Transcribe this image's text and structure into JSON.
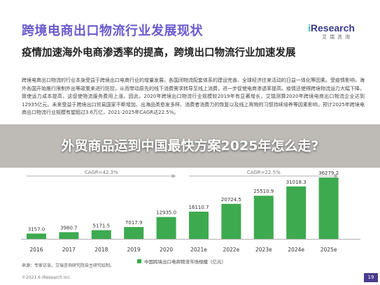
{
  "slide": {
    "title": "跨境电商出口物流行业发展现状",
    "subtitle": "疫情加速海外电商渗透率的提高，跨境出口物流行业加速发展",
    "body": "跨境电商出口物流的行业本身受益于跨境出口电商行业的增量发展，各国闭物流配套体系的建设完善、全球经济往来活动的日益一体化等因素。受疫情影响，海外各国开始推行限制外出等政策来进行防控，从而带动原先的线下消费需求转导至线上消费，进一步促使电商渗透率提高。疫情还使得跨境物流运力大幅下降，致使运力成本提高，这促使物流服务费用上涨。因此，2020年跨境出口物流行业规模较2019年有显著增长，艾瑞测算2020年跨境电商出口物流企业达到12935亿元。未来受益于跨境出口贸易国家不断增加、出海品类愈发多样、消费者消费力的恢复以及线上购物的习惯持续培养等因素影响，预计2025年跨境电商出口物流行业规模有望超过3.6万亿，2021-2025年CAGR达22.5%。",
    "overlay_title": "外贸商品运到中国最快方案2025年怎么走?",
    "source_note": "来源：专家访谈，艾瑞咨询研究院自主研究绘制。",
    "copyright": "©2021.6 iResearch Inc.",
    "page_number": "19",
    "logo": {
      "brand_i": "i",
      "brand_rest": "Research",
      "cn": "艾瑞咨询"
    }
  },
  "colors": {
    "bar": "#3daa4f",
    "title": "#6a5acd",
    "cagr_line": "#b0b0b0"
  },
  "chart_data": {
    "type": "bar",
    "categories": [
      "2016",
      "2017",
      "2018",
      "2019",
      "2020",
      "2021e",
      "2022e",
      "2023e",
      "2024e",
      "2025e"
    ],
    "series": [
      {
        "name": "中国跨境出口电商物流市场规模（亿元）",
        "values": [
          3157.0,
          3980.7,
          5171.5,
          7017.9,
          12935.0,
          16110.7,
          20724.5,
          25510.9,
          31018.3,
          36279.2
        ]
      }
    ],
    "value_labels": [
      "3157.0",
      "3980.7",
      "5171.5",
      "7017.9",
      "12935.0",
      "16110.7",
      "20724.5",
      "25510.9",
      "31018.3",
      "36279.2"
    ],
    "annotations": [
      {
        "text": "CAGR=42.3%",
        "from": "2016",
        "to": "2020"
      },
      {
        "text": "CAGR=22.5%",
        "from": "2021e",
        "to": "2025e"
      }
    ],
    "ylim": [
      0,
      38000
    ],
    "grid": false,
    "legend": "bottom"
  }
}
